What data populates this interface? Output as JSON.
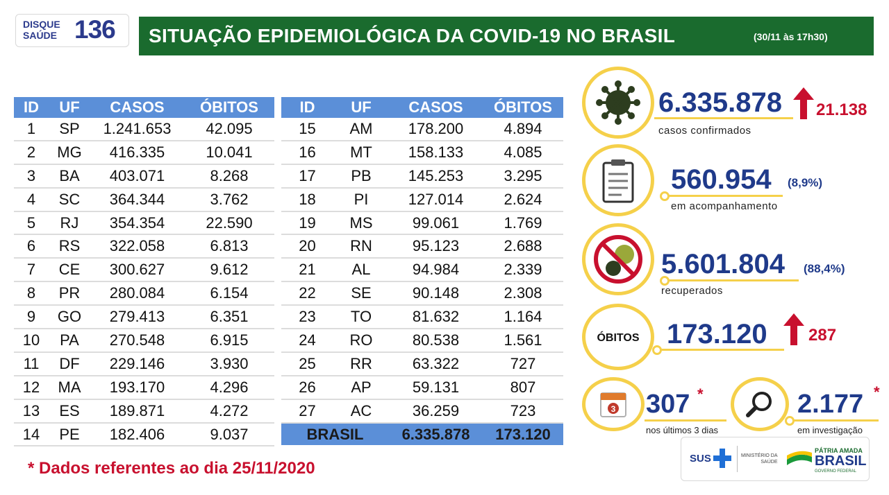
{
  "logo": {
    "line1": "DISQUE",
    "line2": "SAÚDE",
    "number": "136"
  },
  "header": {
    "title": "SITUAÇÃO EPIDEMIOLÓGICA DA COVID-19 NO BRASIL",
    "date": "(30/11 às 17h30)"
  },
  "table": {
    "columns": [
      "ID",
      "UF",
      "CASOS",
      "ÓBITOS"
    ],
    "left_rows": [
      [
        "1",
        "SP",
        "1.241.653",
        "42.095"
      ],
      [
        "2",
        "MG",
        "416.335",
        "10.041"
      ],
      [
        "3",
        "BA",
        "403.071",
        "8.268"
      ],
      [
        "4",
        "SC",
        "364.344",
        "3.762"
      ],
      [
        "5",
        "RJ",
        "354.354",
        "22.590"
      ],
      [
        "6",
        "RS",
        "322.058",
        "6.813"
      ],
      [
        "7",
        "CE",
        "300.627",
        "9.612"
      ],
      [
        "8",
        "PR",
        "280.084",
        "6.154"
      ],
      [
        "9",
        "GO",
        "279.413",
        "6.351"
      ],
      [
        "10",
        "PA",
        "270.548",
        "6.915"
      ],
      [
        "11",
        "DF",
        "229.146",
        "3.930"
      ],
      [
        "12",
        "MA",
        "193.170",
        "4.296"
      ],
      [
        "13",
        "ES",
        "189.871",
        "4.272"
      ],
      [
        "14",
        "PE",
        "182.406",
        "9.037"
      ]
    ],
    "right_rows": [
      [
        "15",
        "AM",
        "178.200",
        "4.894"
      ],
      [
        "16",
        "MT",
        "158.133",
        "4.085"
      ],
      [
        "17",
        "PB",
        "145.253",
        "3.295"
      ],
      [
        "18",
        "PI",
        "127.014",
        "2.624"
      ],
      [
        "19",
        "MS",
        "99.061",
        "1.769"
      ],
      [
        "20",
        "RN",
        "95.123",
        "2.688"
      ],
      [
        "21",
        "AL",
        "94.984",
        "2.339"
      ],
      [
        "22",
        "SE",
        "90.148",
        "2.308"
      ],
      [
        "23",
        "TO",
        "81.632",
        "1.164"
      ],
      [
        "24",
        "RO",
        "80.538",
        "1.561"
      ],
      [
        "25",
        "RR",
        "63.322",
        "727"
      ],
      [
        "26",
        "AP",
        "59.131",
        "807"
      ],
      [
        "27",
        "AC",
        "36.259",
        "723"
      ]
    ],
    "total": {
      "label": "BRASIL",
      "casos": "6.335.878",
      "obitos": "173.120"
    }
  },
  "stats": {
    "confirmed": {
      "value": "6.335.878",
      "increase": "21.138",
      "label": "casos confirmados",
      "icon": "virus-icon"
    },
    "monitoring": {
      "value": "560.954",
      "pct": "(8,9%)",
      "label": "em acompanhamento",
      "icon": "clipboard-icon"
    },
    "recovered": {
      "value": "5.601.804",
      "pct": "(88,4%)",
      "label": "recuperados",
      "icon": "no-virus-icon"
    },
    "deaths": {
      "badge": "ÓBITOS",
      "value": "173.120",
      "increase": "287"
    },
    "last3days": {
      "value": "307",
      "star": "*",
      "label": "nos últimos 3 dias",
      "calendar_day": "3"
    },
    "investigation": {
      "value": "2.177",
      "star": "*",
      "label": "em investigação",
      "icon": "magnifier-icon"
    }
  },
  "footnote": "* Dados referentes ao dia 25/11/2020",
  "gov": {
    "sus": "SUS",
    "ministry_line1": "MINISTÉRIO DA",
    "ministry_line2": "SAÚDE",
    "patria": "PÁTRIA AMADA",
    "brasil": "BRASIL",
    "gov_federal": "GOVERNO FEDERAL"
  },
  "colors": {
    "header_green": "#1a6b2e",
    "table_blue": "#5b8fd8",
    "navy": "#1f3a8a",
    "accent_yellow": "#f5d04a",
    "alert_red": "#c8102e"
  }
}
